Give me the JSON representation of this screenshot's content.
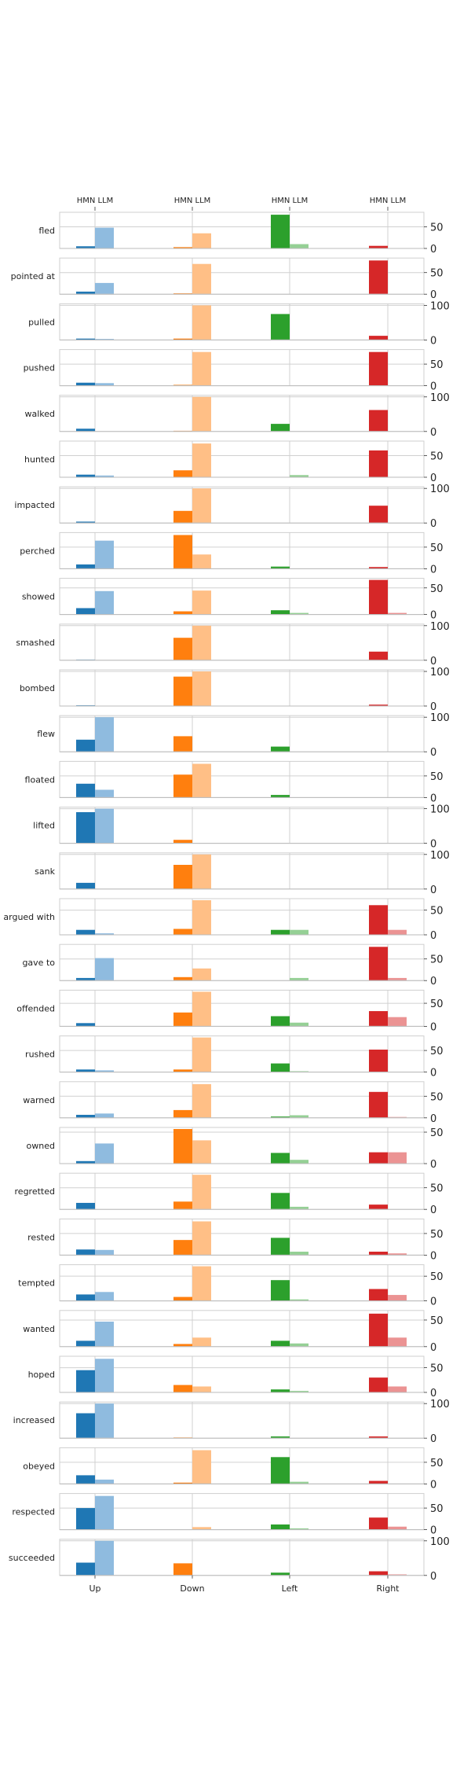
{
  "chart_data": {
    "type": "bar",
    "layout": "small-multiples",
    "categories": [
      "Up",
      "Down",
      "Left",
      "Right"
    ],
    "top_labels": [
      "HMN LLM",
      "HMN LLM",
      "HMN LLM",
      "HMN LLM"
    ],
    "series": [
      {
        "name": "HMN",
        "colors": [
          "#1f77b4",
          "#ff7f0e",
          "#2ca02c",
          "#d62728"
        ]
      },
      {
        "name": "LLM",
        "colors": [
          "#8fbbdf",
          "#ffbf86",
          "#95d095",
          "#eb9393"
        ]
      }
    ],
    "rows": [
      {
        "label": "fled",
        "ymax": 80,
        "ticks": [
          0,
          50
        ],
        "hmn": [
          5,
          3,
          78,
          6
        ],
        "llm": [
          48,
          35,
          10,
          0
        ]
      },
      {
        "label": "pointed at",
        "ymax": 80,
        "ticks": [
          0,
          50
        ],
        "hmn": [
          6,
          2,
          0,
          78
        ],
        "llm": [
          26,
          70,
          0,
          0
        ]
      },
      {
        "label": "pulled",
        "ymax": 100,
        "ticks": [
          0,
          100
        ],
        "hmn": [
          4,
          4,
          75,
          12
        ],
        "llm": [
          3,
          100,
          0,
          0
        ]
      },
      {
        "label": "pushed",
        "ymax": 80,
        "ticks": [
          0,
          50
        ],
        "hmn": [
          7,
          2,
          0,
          78
        ],
        "llm": [
          6,
          78,
          0,
          0
        ]
      },
      {
        "label": "walked",
        "ymax": 100,
        "ticks": [
          0,
          100
        ],
        "hmn": [
          8,
          2,
          22,
          62
        ],
        "llm": [
          0,
          100,
          0,
          0
        ]
      },
      {
        "label": "hunted",
        "ymax": 80,
        "ticks": [
          0,
          50
        ],
        "hmn": [
          6,
          16,
          0,
          62
        ],
        "llm": [
          4,
          78,
          5,
          0
        ]
      },
      {
        "label": "impacted",
        "ymax": 100,
        "ticks": [
          0,
          100
        ],
        "hmn": [
          4,
          35,
          0,
          50
        ],
        "llm": [
          0,
          100,
          0,
          0
        ]
      },
      {
        "label": "perched",
        "ymax": 80,
        "ticks": [
          0,
          50
        ],
        "hmn": [
          10,
          78,
          5,
          4
        ],
        "llm": [
          65,
          33,
          0,
          0
        ]
      },
      {
        "label": "showed",
        "ymax": 65,
        "ticks": [
          0,
          50
        ],
        "hmn": [
          12,
          6,
          8,
          65
        ],
        "llm": [
          44,
          45,
          3,
          3
        ]
      },
      {
        "label": "smashed",
        "ymax": 100,
        "ticks": [
          0,
          100
        ],
        "hmn": [
          2,
          65,
          0,
          25
        ],
        "llm": [
          0,
          100,
          0,
          0
        ]
      },
      {
        "label": "bombed",
        "ymax": 100,
        "ticks": [
          0,
          100
        ],
        "hmn": [
          2,
          85,
          0,
          4
        ],
        "llm": [
          0,
          100,
          0,
          0
        ]
      },
      {
        "label": "flew",
        "ymax": 100,
        "ticks": [
          0,
          100
        ],
        "hmn": [
          35,
          45,
          15,
          0
        ],
        "llm": [
          100,
          0,
          0,
          0
        ]
      },
      {
        "label": "floated",
        "ymax": 80,
        "ticks": [
          0,
          50
        ],
        "hmn": [
          32,
          53,
          6,
          0
        ],
        "llm": [
          18,
          78,
          0,
          0
        ]
      },
      {
        "label": "lifted",
        "ymax": 100,
        "ticks": [
          0,
          100
        ],
        "hmn": [
          90,
          10,
          0,
          0
        ],
        "llm": [
          100,
          0,
          0,
          0
        ]
      },
      {
        "label": "sank",
        "ymax": 100,
        "ticks": [
          0,
          100
        ],
        "hmn": [
          18,
          70,
          0,
          0
        ],
        "llm": [
          0,
          100,
          0,
          0
        ]
      },
      {
        "label": "argued with",
        "ymax": 70,
        "ticks": [
          0,
          50
        ],
        "hmn": [
          10,
          12,
          10,
          60
        ],
        "llm": [
          3,
          70,
          10,
          10
        ]
      },
      {
        "label": "gave to",
        "ymax": 80,
        "ticks": [
          0,
          50
        ],
        "hmn": [
          6,
          8,
          0,
          78
        ],
        "llm": [
          52,
          28,
          6,
          6
        ]
      },
      {
        "label": "offended",
        "ymax": 75,
        "ticks": [
          0,
          50
        ],
        "hmn": [
          7,
          30,
          22,
          33
        ],
        "llm": [
          0,
          75,
          8,
          20
        ]
      },
      {
        "label": "rushed",
        "ymax": 80,
        "ticks": [
          0,
          50
        ],
        "hmn": [
          6,
          6,
          20,
          52
        ],
        "llm": [
          4,
          80,
          2,
          0
        ]
      },
      {
        "label": "warned",
        "ymax": 80,
        "ticks": [
          0,
          50
        ],
        "hmn": [
          7,
          18,
          3,
          60
        ],
        "llm": [
          10,
          78,
          6,
          2
        ]
      },
      {
        "label": "owned",
        "ymax": 55,
        "ticks": [
          0,
          50
        ],
        "hmn": [
          4,
          55,
          17,
          18
        ],
        "llm": [
          32,
          37,
          6,
          18
        ]
      },
      {
        "label": "regretted",
        "ymax": 80,
        "ticks": [
          0,
          50
        ],
        "hmn": [
          15,
          18,
          38,
          11
        ],
        "llm": [
          0,
          80,
          6,
          0
        ]
      },
      {
        "label": "rested",
        "ymax": 80,
        "ticks": [
          0,
          50
        ],
        "hmn": [
          13,
          35,
          40,
          8
        ],
        "llm": [
          12,
          78,
          8,
          4
        ]
      },
      {
        "label": "tempted",
        "ymax": 70,
        "ticks": [
          0,
          50
        ],
        "hmn": [
          13,
          8,
          42,
          24
        ],
        "llm": [
          18,
          70,
          3,
          12
        ]
      },
      {
        "label": "wanted",
        "ymax": 65,
        "ticks": [
          0,
          50
        ],
        "hmn": [
          11,
          5,
          11,
          62
        ],
        "llm": [
          47,
          17,
          6,
          17
        ]
      },
      {
        "label": "hoped",
        "ymax": 70,
        "ticks": [
          0,
          50
        ],
        "hmn": [
          45,
          15,
          6,
          30
        ],
        "llm": [
          68,
          12,
          3,
          12
        ]
      },
      {
        "label": "increased",
        "ymax": 100,
        "ticks": [
          0,
          100
        ],
        "hmn": [
          72,
          2,
          5,
          5
        ],
        "llm": [
          100,
          0,
          0,
          0
        ]
      },
      {
        "label": "obeyed",
        "ymax": 80,
        "ticks": [
          0,
          50
        ],
        "hmn": [
          20,
          3,
          62,
          7
        ],
        "llm": [
          10,
          78,
          5,
          0
        ]
      },
      {
        "label": "respected",
        "ymax": 80,
        "ticks": [
          0,
          50
        ],
        "hmn": [
          50,
          0,
          12,
          28
        ],
        "llm": [
          78,
          6,
          3,
          7
        ]
      },
      {
        "label": "succeeded",
        "ymax": 100,
        "ticks": [
          0,
          100
        ],
        "hmn": [
          37,
          35,
          8,
          12
        ],
        "llm": [
          100,
          0,
          0,
          3
        ]
      }
    ],
    "grid": "vertical",
    "legend": "none"
  }
}
